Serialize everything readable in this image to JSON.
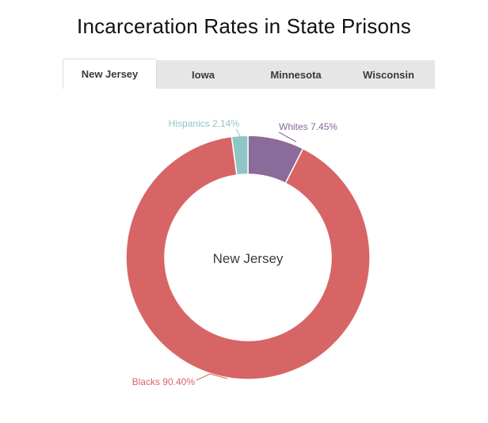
{
  "page": {
    "title": "Incarceration Rates in State Prisons"
  },
  "tabs": [
    {
      "label": "New Jersey",
      "active": true
    },
    {
      "label": "Iowa",
      "active": false
    },
    {
      "label": "Minnesota",
      "active": false
    },
    {
      "label": "Wisconsin",
      "active": false
    }
  ],
  "chart_data": {
    "type": "pie",
    "title": "Incarceration Rates in State Prisons",
    "center_label": "New Jersey",
    "donut": true,
    "slices": [
      {
        "name": "Whites",
        "value": 7.45,
        "label": "Whites 7.45%",
        "color": "#8b6b9a"
      },
      {
        "name": "Blacks",
        "value": 90.4,
        "label": "Blacks 90.40%",
        "color": "#d76565"
      },
      {
        "name": "Hispanics",
        "value": 2.14,
        "label": "Hispanics 2.14%",
        "color": "#8fc6c5"
      }
    ]
  },
  "colors": {
    "tab_bar": "#e6e6e6",
    "tab_active": "#ffffff"
  }
}
